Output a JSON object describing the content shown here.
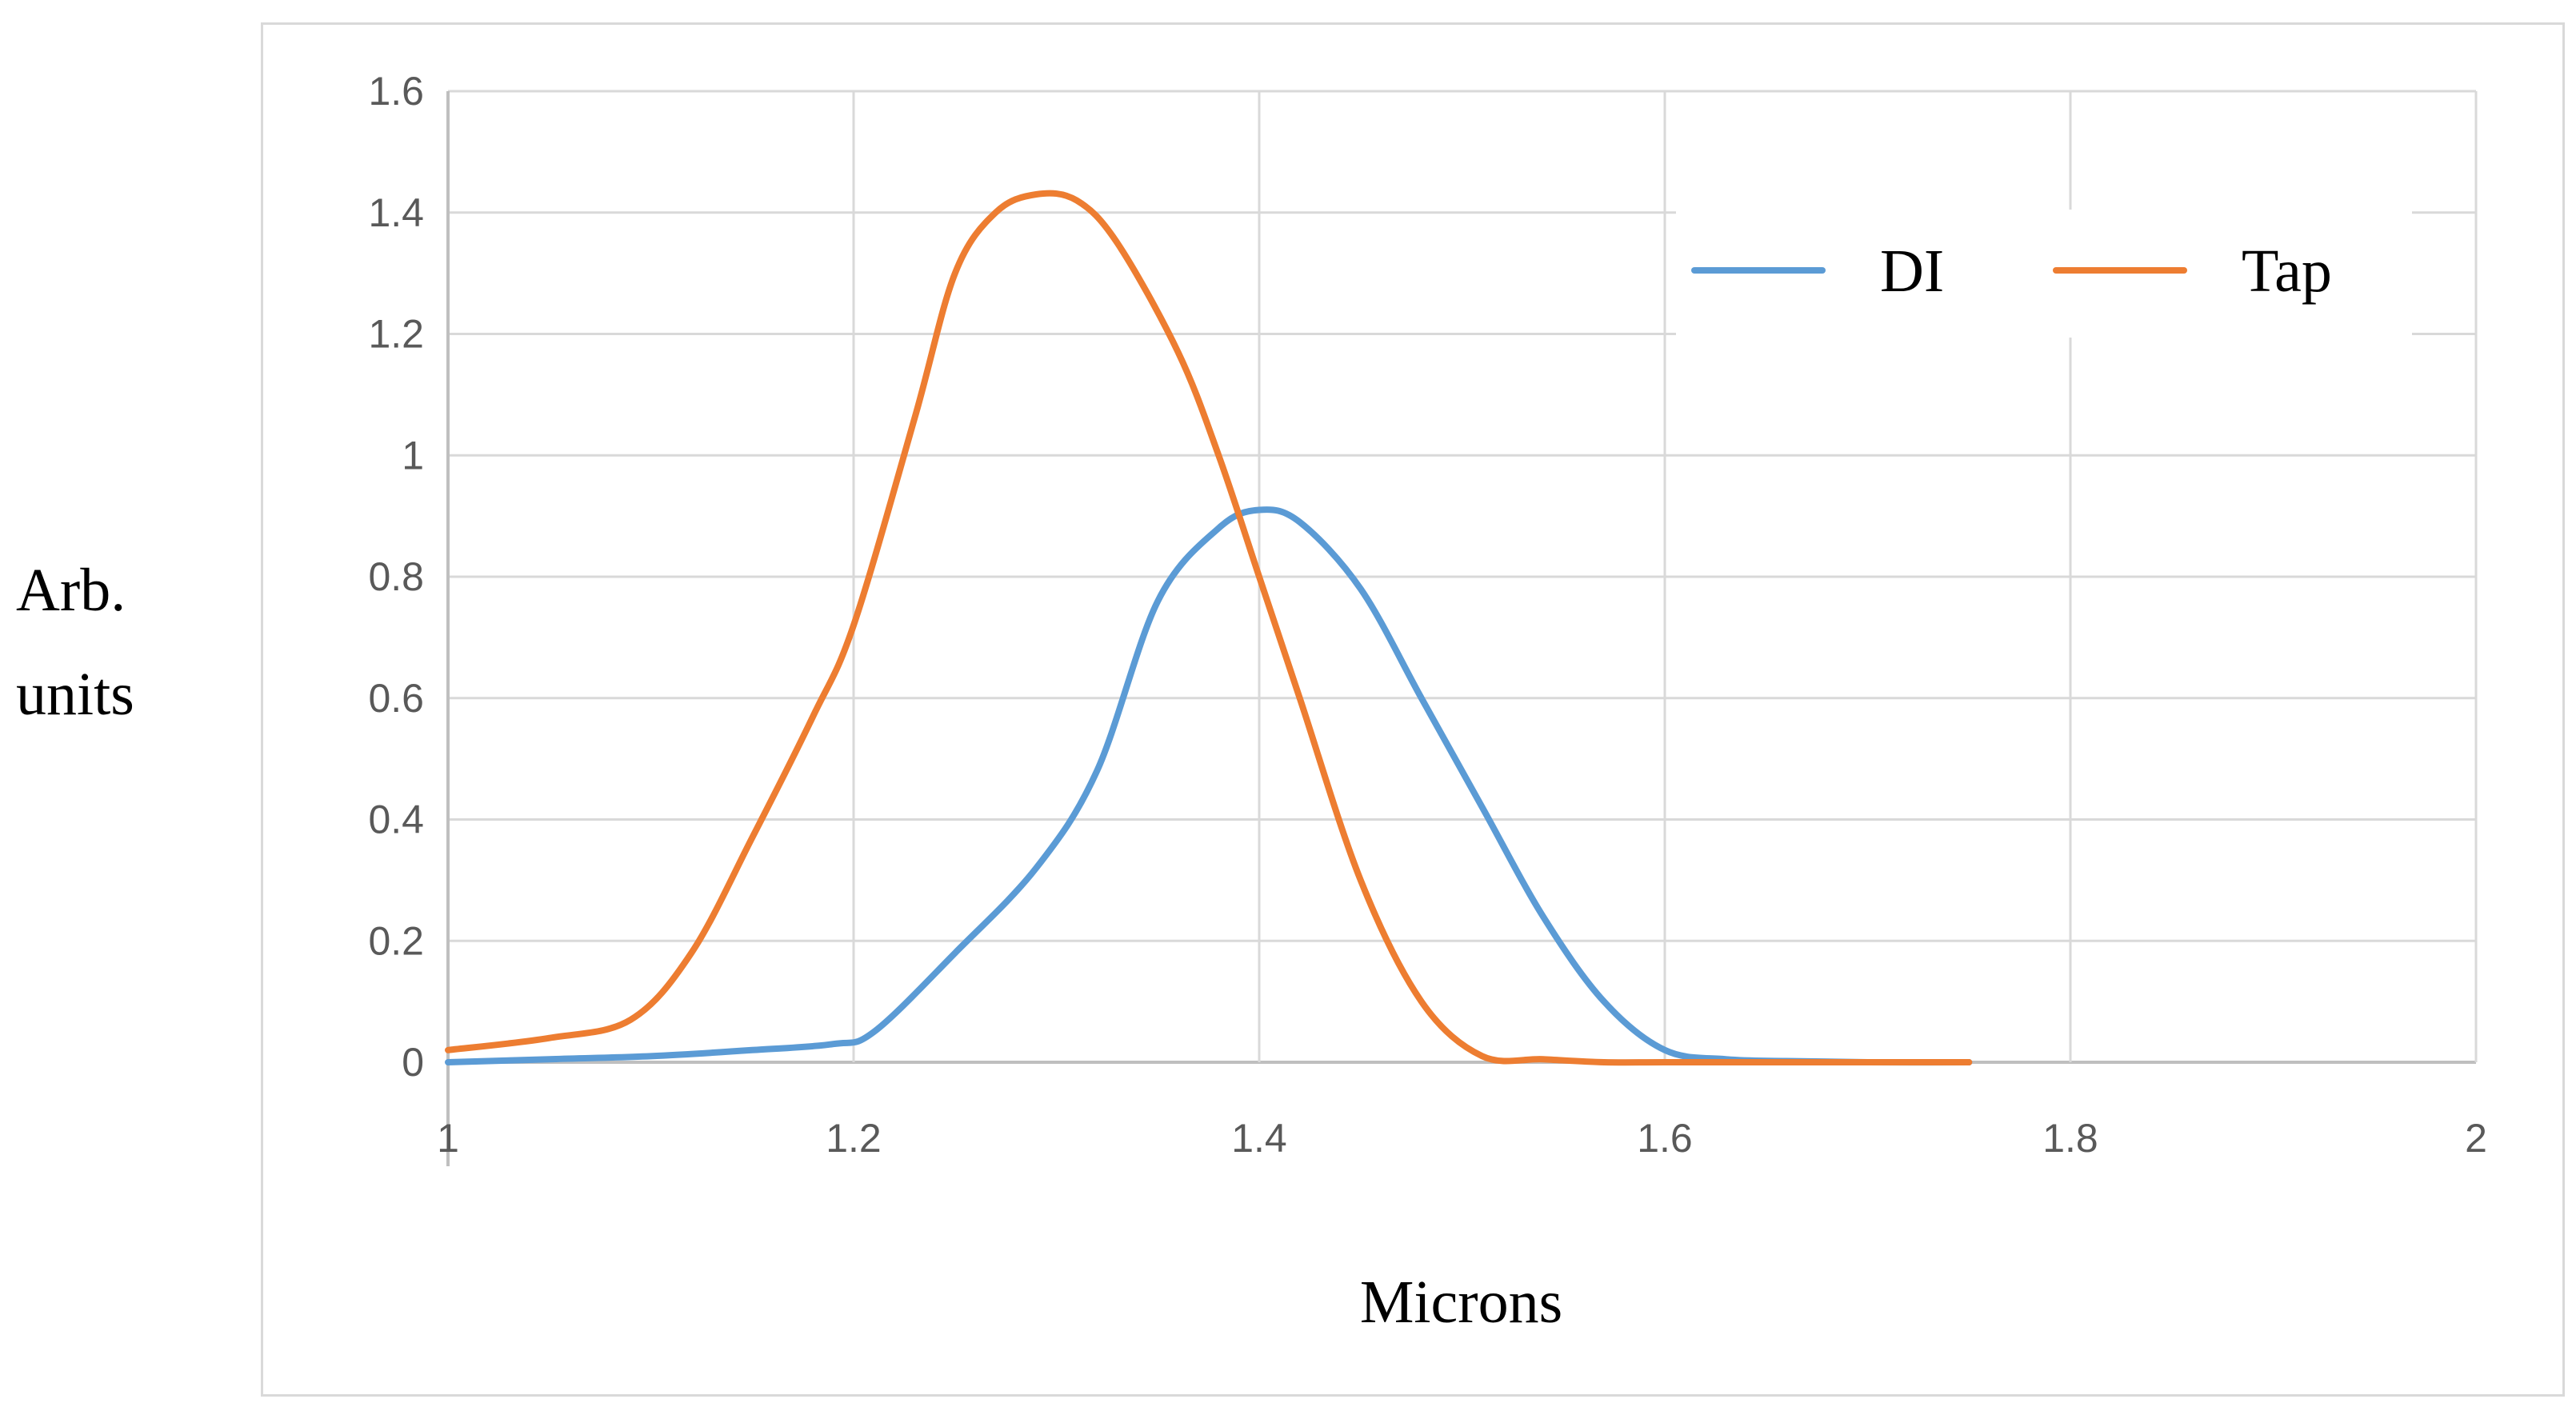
{
  "chart_data": {
    "type": "line",
    "title": "",
    "xlabel": "Microns",
    "ylabel_lines": [
      "Arb.",
      "units"
    ],
    "xlim": [
      1,
      2
    ],
    "ylim": [
      0,
      1.6
    ],
    "xticks": [
      "1",
      "1.2",
      "1.4",
      "1.6",
      "1.8",
      "2"
    ],
    "yticks": [
      "0",
      "0.2",
      "0.4",
      "0.6",
      "0.8",
      "1",
      "1.2",
      "1.4",
      "1.6"
    ],
    "grid": true,
    "legend_position": "top-right",
    "series": [
      {
        "name": "DI",
        "color": "#5b9bd5",
        "x": [
          1.0,
          1.05,
          1.1,
          1.15,
          1.19,
          1.21,
          1.25,
          1.29,
          1.32,
          1.35,
          1.38,
          1.4,
          1.42,
          1.45,
          1.48,
          1.51,
          1.54,
          1.57,
          1.6,
          1.63,
          1.66,
          1.7,
          1.75
        ],
        "y": [
          0.0,
          0.005,
          0.01,
          0.02,
          0.03,
          0.05,
          0.18,
          0.32,
          0.48,
          0.76,
          0.88,
          0.91,
          0.89,
          0.78,
          0.6,
          0.42,
          0.24,
          0.1,
          0.02,
          0.005,
          0.002,
          0.0,
          0.0
        ]
      },
      {
        "name": "Tap",
        "color": "#ed7d31",
        "x": [
          1.0,
          1.05,
          1.09,
          1.12,
          1.15,
          1.18,
          1.2,
          1.23,
          1.25,
          1.27,
          1.29,
          1.31,
          1.33,
          1.36,
          1.38,
          1.4,
          1.42,
          1.45,
          1.48,
          1.51,
          1.54,
          1.57,
          1.6,
          1.65,
          1.7,
          1.75
        ],
        "y": [
          0.02,
          0.04,
          0.07,
          0.18,
          0.37,
          0.57,
          0.72,
          1.06,
          1.3,
          1.4,
          1.43,
          1.42,
          1.35,
          1.17,
          1.0,
          0.8,
          0.6,
          0.3,
          0.1,
          0.01,
          0.005,
          0.0,
          0.0,
          0.0,
          0.0,
          0.0
        ]
      }
    ]
  }
}
